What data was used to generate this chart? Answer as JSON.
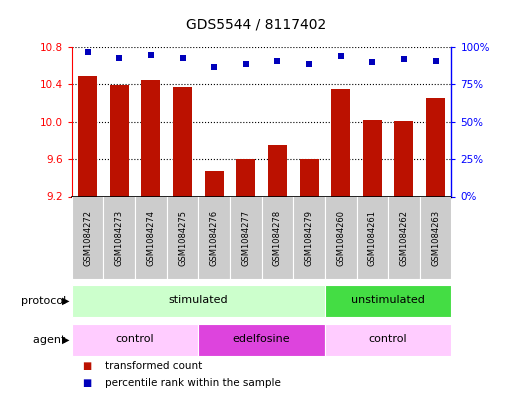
{
  "title": "GDS5544 / 8117402",
  "samples": [
    "GSM1084272",
    "GSM1084273",
    "GSM1084274",
    "GSM1084275",
    "GSM1084276",
    "GSM1084277",
    "GSM1084278",
    "GSM1084279",
    "GSM1084260",
    "GSM1084261",
    "GSM1084262",
    "GSM1084263"
  ],
  "bar_values": [
    10.49,
    10.39,
    10.45,
    10.37,
    9.47,
    9.6,
    9.75,
    9.6,
    10.35,
    10.02,
    10.01,
    10.25
  ],
  "dot_values": [
    97,
    93,
    95,
    93,
    87,
    89,
    91,
    89,
    94,
    90,
    92,
    91
  ],
  "ymin": 9.2,
  "ymax": 10.8,
  "yticks": [
    9.2,
    9.6,
    10.0,
    10.4,
    10.8
  ],
  "y2min": 0,
  "y2max": 100,
  "y2ticks": [
    0,
    25,
    50,
    75,
    100
  ],
  "protocol_groups": [
    {
      "label": "stimulated",
      "start": 0,
      "end": 8,
      "color": "#CCFFCC"
    },
    {
      "label": "unstimulated",
      "start": 8,
      "end": 12,
      "color": "#44DD44"
    }
  ],
  "agent_groups": [
    {
      "label": "control",
      "start": 0,
      "end": 4,
      "color": "#FFCCFF"
    },
    {
      "label": "edelfosine",
      "start": 4,
      "end": 8,
      "color": "#DD44DD"
    },
    {
      "label": "control",
      "start": 8,
      "end": 12,
      "color": "#FFCCFF"
    }
  ],
  "bar_color": "#BB1100",
  "dot_color": "#0000BB",
  "background_color": "#ffffff",
  "protocol_label": "protocol",
  "agent_label": "agent",
  "legend1": "transformed count",
  "legend2": "percentile rank within the sample",
  "sample_box_color": "#CCCCCC"
}
